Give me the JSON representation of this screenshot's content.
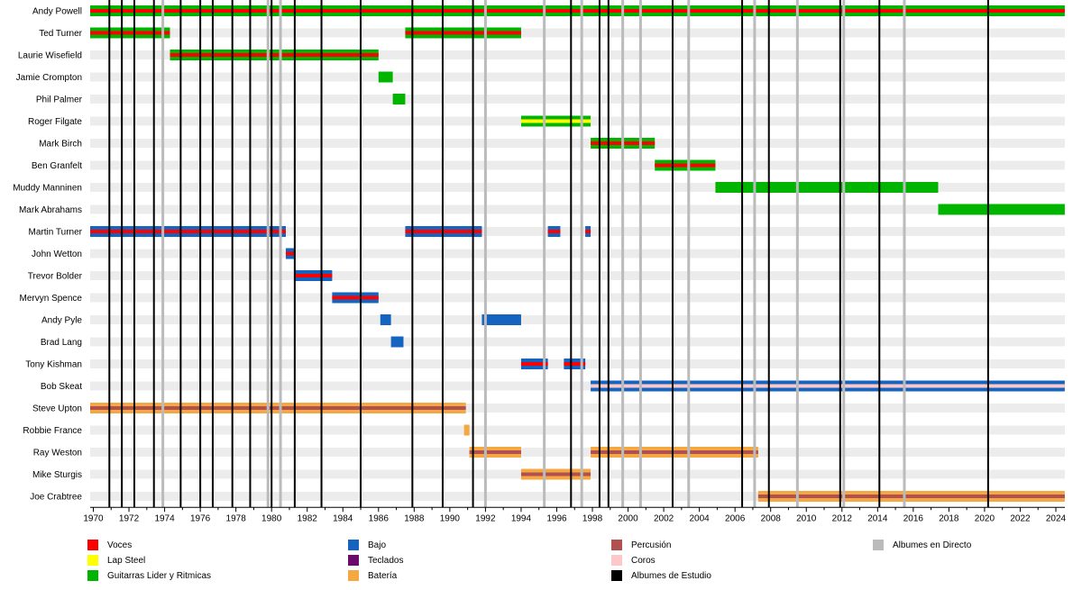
{
  "chart_data": {
    "type": "timeline",
    "title": "",
    "x_range": [
      1970,
      2024.5
    ],
    "x_ticks": [
      1970,
      1972,
      1974,
      1976,
      1978,
      1980,
      1982,
      1984,
      1986,
      1988,
      1990,
      1992,
      1994,
      1996,
      1998,
      2000,
      2002,
      2004,
      2006,
      2008,
      2010,
      2012,
      2014,
      2016,
      2018,
      2020,
      2022,
      2024
    ],
    "categories": {
      "vocals": {
        "label": "Voces",
        "color": "#ff0000"
      },
      "lapsteel": {
        "label": "Lap Steel",
        "color": "#ffff00"
      },
      "guitars": {
        "label": "Guitarras Lider y Ritmicas",
        "color": "#00b400"
      },
      "bass": {
        "label": "Bajo",
        "color": "#1565c0"
      },
      "keys": {
        "label": "Teclados",
        "color": "#6a0d6a"
      },
      "drums": {
        "label": "Batería",
        "color": "#f5a742"
      },
      "perc": {
        "label": "Percusión",
        "color": "#b05050"
      },
      "backing": {
        "label": "Coros",
        "color": "#ffc8c8"
      },
      "studio": {
        "label": "Albumes de Estudio",
        "color": "#000000"
      },
      "live": {
        "label": "Albumes en Directo",
        "color": "#bbbbbb"
      }
    },
    "legend_order": [
      "vocals",
      "lapsteel",
      "guitars",
      "bass",
      "keys",
      "drums",
      "perc",
      "backing",
      "studio",
      "live"
    ],
    "members": [
      {
        "name": "Andy Powell",
        "periods": [
          {
            "start": 1969.5,
            "end": 2024.5,
            "base": "guitars",
            "stripe": "vocals"
          }
        ]
      },
      {
        "name": "Ted Turner",
        "periods": [
          {
            "start": 1969.5,
            "end": 1974.3,
            "base": "guitars",
            "stripe": "vocals"
          },
          {
            "start": 1987.5,
            "end": 1994.0,
            "base": "guitars",
            "stripe": "vocals"
          }
        ]
      },
      {
        "name": "Laurie Wisefield",
        "periods": [
          {
            "start": 1974.3,
            "end": 1986.0,
            "base": "guitars",
            "stripe": "vocals"
          }
        ]
      },
      {
        "name": "Jamie Crompton",
        "periods": [
          {
            "start": 1986.0,
            "end": 1986.8,
            "base": "guitars",
            "stripe": "none"
          }
        ]
      },
      {
        "name": "Phil Palmer",
        "periods": [
          {
            "start": 1986.8,
            "end": 1987.5,
            "base": "guitars",
            "stripe": "none"
          }
        ]
      },
      {
        "name": "Roger Filgate",
        "periods": [
          {
            "start": 1994.0,
            "end": 1997.9,
            "base": "guitars",
            "stripe": "lapsteel"
          }
        ]
      },
      {
        "name": "Mark Birch",
        "periods": [
          {
            "start": 1997.9,
            "end": 2001.5,
            "base": "guitars",
            "stripe": "vocals"
          }
        ]
      },
      {
        "name": "Ben Granfelt",
        "periods": [
          {
            "start": 2001.5,
            "end": 2004.9,
            "base": "guitars",
            "stripe": "vocals"
          }
        ]
      },
      {
        "name": "Muddy Manninen",
        "periods": [
          {
            "start": 2004.9,
            "end": 2017.4,
            "base": "guitars",
            "stripe": "none"
          }
        ]
      },
      {
        "name": "Mark Abrahams",
        "periods": [
          {
            "start": 2017.4,
            "end": 2024.5,
            "base": "guitars",
            "stripe": "none"
          }
        ]
      },
      {
        "name": "Martin Turner",
        "periods": [
          {
            "start": 1969.5,
            "end": 1980.8,
            "base": "bass",
            "stripe": "vocals"
          },
          {
            "start": 1987.5,
            "end": 1991.8,
            "base": "bass",
            "stripe": "vocals"
          },
          {
            "start": 1995.5,
            "end": 1996.2,
            "base": "bass",
            "stripe": "vocals"
          },
          {
            "start": 1997.6,
            "end": 1997.9,
            "base": "bass",
            "stripe": "vocals"
          }
        ]
      },
      {
        "name": "John Wetton",
        "periods": [
          {
            "start": 1980.8,
            "end": 1981.3,
            "base": "bass",
            "stripe": "vocals"
          }
        ]
      },
      {
        "name": "Trevor Bolder",
        "periods": [
          {
            "start": 1981.3,
            "end": 1983.4,
            "base": "bass",
            "stripe": "vocals"
          }
        ]
      },
      {
        "name": "Mervyn Spence",
        "periods": [
          {
            "start": 1983.4,
            "end": 1986.0,
            "base": "bass",
            "stripe": "vocals"
          }
        ]
      },
      {
        "name": "Andy Pyle",
        "periods": [
          {
            "start": 1986.1,
            "end": 1986.7,
            "base": "bass",
            "stripe": "none"
          },
          {
            "start": 1991.8,
            "end": 1994.0,
            "base": "bass",
            "stripe": "none"
          }
        ]
      },
      {
        "name": "Brad Lang",
        "periods": [
          {
            "start": 1986.7,
            "end": 1987.4,
            "base": "bass",
            "stripe": "none"
          }
        ]
      },
      {
        "name": "Tony Kishman",
        "periods": [
          {
            "start": 1994.0,
            "end": 1995.5,
            "base": "bass",
            "stripe": "vocals"
          },
          {
            "start": 1996.4,
            "end": 1997.6,
            "base": "bass",
            "stripe": "vocals"
          }
        ]
      },
      {
        "name": "Bob Skeat",
        "periods": [
          {
            "start": 1997.9,
            "end": 2024.5,
            "base": "bass",
            "stripe": "backing"
          }
        ]
      },
      {
        "name": "Steve Upton",
        "periods": [
          {
            "start": 1969.5,
            "end": 1990.9,
            "base": "drums",
            "stripe": "perc"
          }
        ]
      },
      {
        "name": "Robbie France",
        "periods": [
          {
            "start": 1990.8,
            "end": 1991.1,
            "base": "drums",
            "stripe": "none"
          }
        ]
      },
      {
        "name": "Ray Weston",
        "periods": [
          {
            "start": 1991.1,
            "end": 1994.0,
            "base": "drums",
            "stripe": "perc"
          },
          {
            "start": 1997.9,
            "end": 2007.3,
            "base": "drums",
            "stripe": "perc"
          }
        ]
      },
      {
        "name": "Mike Sturgis",
        "periods": [
          {
            "start": 1994.0,
            "end": 1997.9,
            "base": "drums",
            "stripe": "perc"
          }
        ]
      },
      {
        "name": "Joe Crabtree",
        "periods": [
          {
            "start": 2007.3,
            "end": 2024.5,
            "base": "drums",
            "stripe": "perc"
          }
        ]
      }
    ],
    "studio_albums": [
      1970.9,
      1971.6,
      1972.3,
      1973.4,
      1974.9,
      1976.0,
      1976.7,
      1977.8,
      1978.8,
      1980.0,
      1981.3,
      1982.8,
      1985.0,
      1987.9,
      1989.6,
      1991.3,
      1996.8,
      1998.4,
      1998.9,
      2002.5,
      2006.4,
      2007.9,
      2011.9,
      2014.1,
      2020.2
    ],
    "live_albums": [
      1973.9,
      1979.8,
      1980.5,
      1992.0,
      1995.3,
      1997.4,
      1999.7,
      2000.7,
      2003.4,
      2007.1,
      2009.5,
      2012.1,
      2015.5
    ]
  }
}
